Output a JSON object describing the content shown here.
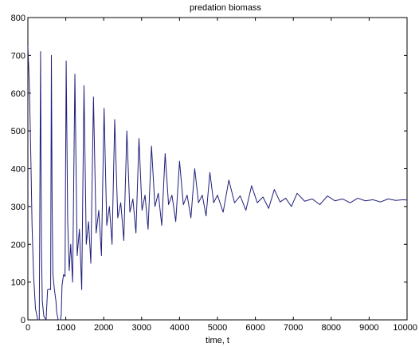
{
  "chart_data": {
    "type": "line",
    "title": "predation biomass",
    "xlabel": "time, t",
    "ylabel": "",
    "xlim": [
      0,
      10000
    ],
    "ylim": [
      0,
      800
    ],
    "xticks": [
      0,
      1000,
      2000,
      3000,
      4000,
      5000,
      6000,
      7000,
      8000,
      9000,
      10000
    ],
    "yticks": [
      0,
      100,
      200,
      300,
      400,
      500,
      600,
      700,
      800
    ],
    "grid": false,
    "line_color": "#1f1f7a",
    "series": [
      {
        "x": [
          0,
          40,
          80,
          110,
          150,
          200,
          260,
          300,
          335,
          345,
          360,
          380,
          420,
          480,
          520,
          560,
          600,
          620,
          640,
          660,
          700,
          740,
          760,
          800,
          830,
          860,
          880,
          900,
          940,
          980,
          1010,
          1050,
          1090,
          1130,
          1180,
          1240,
          1300,
          1360,
          1420,
          1480,
          1540,
          1600,
          1660,
          1730,
          1800,
          1870,
          1940,
          2010,
          2080,
          2150,
          2220,
          2290,
          2370,
          2450,
          2530,
          2610,
          2690,
          2770,
          2850,
          2930,
          3010,
          3090,
          3170,
          3260,
          3350,
          3440,
          3530,
          3620,
          3710,
          3800,
          3900,
          4000,
          4100,
          4200,
          4300,
          4400,
          4500,
          4600,
          4700,
          4800,
          4900,
          5000,
          5150,
          5300,
          5450,
          5600,
          5750,
          5900,
          6050,
          6200,
          6350,
          6500,
          6650,
          6800,
          6950,
          7100,
          7300,
          7500,
          7700,
          7900,
          8100,
          8300,
          8500,
          8700,
          8900,
          9100,
          9300,
          9500,
          9700,
          9900,
          10000
        ],
        "y": [
          725,
          620,
          420,
          250,
          120,
          30,
          0,
          0,
          710,
          450,
          180,
          50,
          10,
          0,
          80,
          82,
          80,
          700,
          300,
          120,
          80,
          50,
          20,
          0,
          0,
          0,
          15,
          90,
          120,
          115,
          685,
          260,
          130,
          200,
          100,
          650,
          170,
          240,
          80,
          620,
          200,
          260,
          150,
          590,
          230,
          290,
          170,
          560,
          250,
          300,
          200,
          530,
          270,
          310,
          210,
          500,
          285,
          320,
          230,
          480,
          290,
          330,
          240,
          460,
          300,
          335,
          250,
          440,
          305,
          330,
          260,
          420,
          305,
          330,
          270,
          400,
          310,
          330,
          275,
          390,
          310,
          330,
          285,
          370,
          310,
          328,
          290,
          355,
          310,
          325,
          295,
          345,
          312,
          322,
          300,
          335,
          314,
          320,
          305,
          328,
          315,
          320,
          310,
          322,
          315,
          318,
          312,
          320,
          316,
          318,
          317
        ]
      }
    ]
  }
}
